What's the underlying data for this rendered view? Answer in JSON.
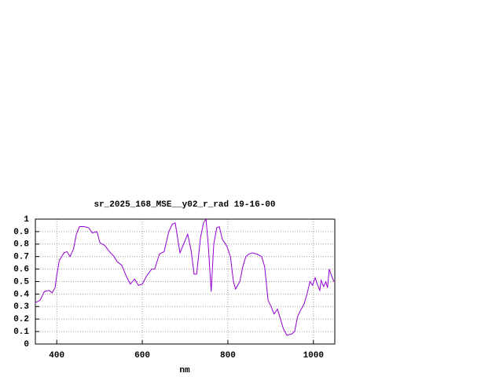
{
  "chart_data": {
    "type": "line",
    "title": "sr_2025_168_MSE__y02_r_rad 19-16-00",
    "x_label": "nm",
    "xlim": [
      350,
      1050
    ],
    "xticks": [
      400,
      600,
      800,
      1000
    ],
    "ylim": [
      0,
      1
    ],
    "yticks": [
      0,
      0.1,
      0.2,
      0.3,
      0.4,
      0.5,
      0.6,
      0.7,
      0.8,
      0.9,
      1
    ],
    "grid": true,
    "series": [
      {
        "color": "#9400d3",
        "x": [
          349,
          361,
          371,
          382,
          389,
          396,
          400,
          406,
          417,
          424,
          431,
          439,
          446,
          453,
          464,
          475,
          483,
          494,
          501,
          512,
          523,
          534,
          541,
          552,
          563,
          572,
          582,
          591,
          600,
          611,
          622,
          629,
          640,
          651,
          662,
          670,
          677,
          688,
          699,
          706,
          714,
          721,
          727,
          736,
          743,
          749,
          754,
          761,
          767,
          774,
          780,
          787,
          798,
          806,
          813,
          818,
          828,
          835,
          842,
          849,
          857,
          868,
          879,
          886,
          894,
          901,
          908,
          916,
          923,
          930,
          938,
          949,
          956,
          963,
          970,
          978,
          985,
          992,
          998,
          1004,
          1009,
          1015,
          1018,
          1024,
          1029,
          1033,
          1037,
          1042,
          1048
        ],
        "values": [
          0.33,
          0.35,
          0.42,
          0.43,
          0.41,
          0.45,
          0.55,
          0.67,
          0.73,
          0.74,
          0.7,
          0.76,
          0.88,
          0.94,
          0.94,
          0.93,
          0.89,
          0.9,
          0.81,
          0.79,
          0.74,
          0.7,
          0.66,
          0.63,
          0.54,
          0.48,
          0.52,
          0.47,
          0.48,
          0.55,
          0.6,
          0.6,
          0.72,
          0.74,
          0.9,
          0.96,
          0.97,
          0.73,
          0.82,
          0.88,
          0.75,
          0.56,
          0.56,
          0.85,
          0.97,
          1.0,
          0.8,
          0.42,
          0.8,
          0.93,
          0.94,
          0.84,
          0.78,
          0.7,
          0.5,
          0.44,
          0.5,
          0.62,
          0.7,
          0.72,
          0.73,
          0.72,
          0.7,
          0.62,
          0.35,
          0.3,
          0.24,
          0.28,
          0.2,
          0.12,
          0.07,
          0.08,
          0.1,
          0.22,
          0.27,
          0.32,
          0.4,
          0.5,
          0.47,
          0.53,
          0.48,
          0.43,
          0.51,
          0.46,
          0.5,
          0.45,
          0.6,
          0.55,
          0.5
        ]
      }
    ]
  }
}
